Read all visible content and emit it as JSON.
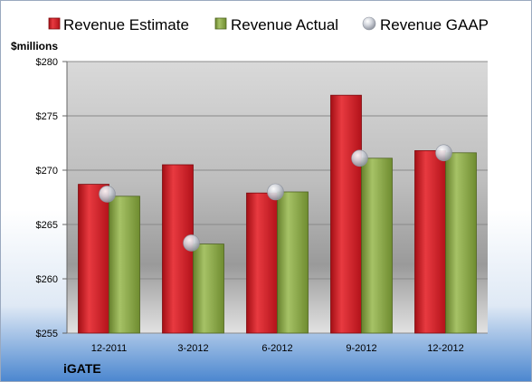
{
  "chart_data": {
    "type": "bar",
    "unit_label": "$millions",
    "company": "iGATE",
    "categories": [
      "12-2011",
      "3-2012",
      "6-2012",
      "9-2012",
      "12-2012"
    ],
    "series": [
      {
        "name": "Revenue Estimate",
        "type": "bar",
        "color": "#c8161d",
        "values": [
          268.7,
          270.5,
          267.9,
          276.9,
          271.8
        ]
      },
      {
        "name": "Revenue Actual",
        "type": "bar",
        "color": "#7d9b3a",
        "values": [
          267.6,
          263.2,
          268.0,
          271.1,
          271.6
        ]
      },
      {
        "name": "Revenue GAAP",
        "type": "marker",
        "color": "#b8bcc6",
        "values": [
          267.8,
          263.3,
          268.0,
          271.1,
          271.6
        ]
      }
    ],
    "ylim": [
      255,
      280
    ],
    "yticks": [
      255,
      260,
      265,
      270,
      275,
      280
    ],
    "ytick_labels": [
      "$255",
      "$260",
      "$265",
      "$270",
      "$275",
      "$280"
    ],
    "grid": true,
    "legend_position": "top"
  }
}
